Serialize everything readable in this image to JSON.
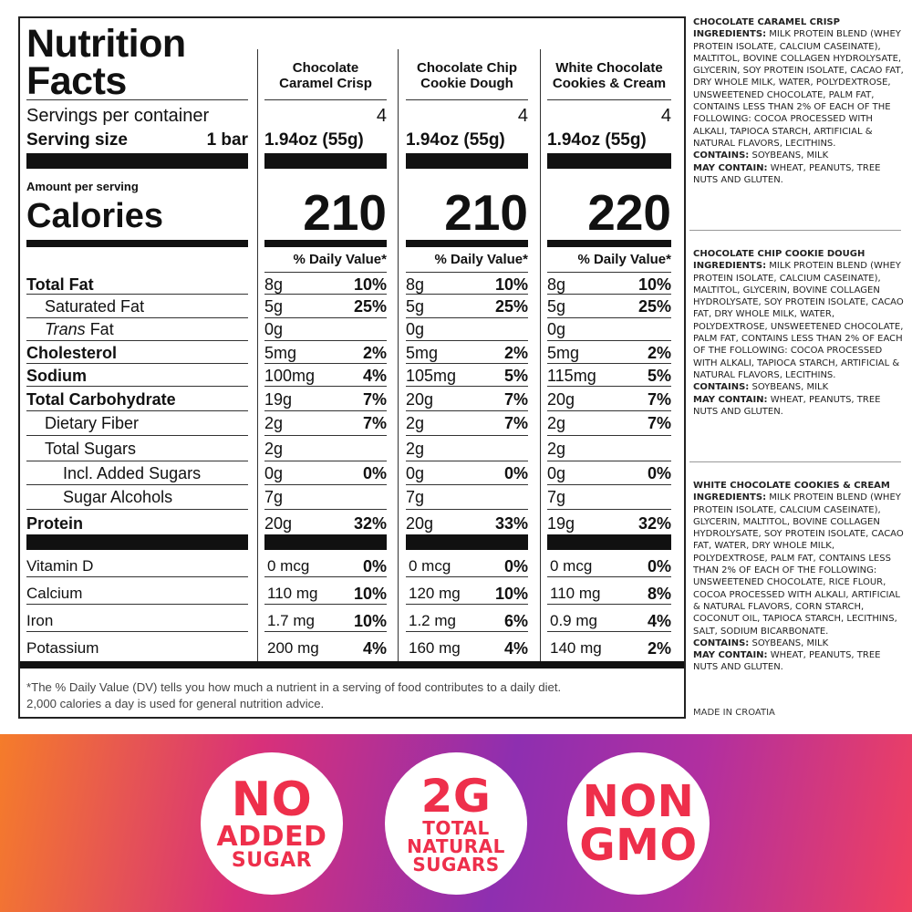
{
  "panel": {
    "title_line1": "Nutrition",
    "title_line2": "Facts",
    "servings_label": "Servings per container",
    "serving_size_label": "Serving size",
    "serving_size_unit": "1 bar",
    "amount_per_serving": "Amount per serving",
    "calories_label": "Calories",
    "dv_header": "% Daily Value*",
    "footnote_line1": "*The % Daily Value (DV) tells you how much a nutrient in a serving of food contributes to a daily diet.",
    "footnote_line2": "2,000 calories a day is used for general nutrition advice."
  },
  "products": [
    {
      "name_line1": "Chocolate",
      "name_line2": "Caramel Crisp",
      "servings": "4",
      "serving_size": "1.94oz (55g)",
      "calories": "210",
      "rows": [
        {
          "amt": "8g",
          "dv": "10%"
        },
        {
          "amt": "5g",
          "dv": "25%"
        },
        {
          "amt": "0g",
          "dv": ""
        },
        {
          "amt": "5mg",
          "dv": "2%"
        },
        {
          "amt": "100mg",
          "dv": "4%"
        },
        {
          "amt": "19g",
          "dv": "7%"
        },
        {
          "amt": "2g",
          "dv": "7%"
        },
        {
          "amt": "2g",
          "dv": ""
        },
        {
          "amt": "0g",
          "dv": "0%"
        },
        {
          "amt": "7g",
          "dv": ""
        },
        {
          "amt": "20g",
          "dv": "32%"
        }
      ],
      "vitamins": [
        {
          "amt": "0 mcg",
          "dv": "0%"
        },
        {
          "amt": "110 mg",
          "dv": "10%"
        },
        {
          "amt": "1.7 mg",
          "dv": "10%"
        },
        {
          "amt": "200 mg",
          "dv": "4%"
        }
      ]
    },
    {
      "name_line1": "Chocolate Chip",
      "name_line2": "Cookie Dough",
      "servings": "4",
      "serving_size": "1.94oz (55g)",
      "calories": "210",
      "rows": [
        {
          "amt": "8g",
          "dv": "10%"
        },
        {
          "amt": "5g",
          "dv": "25%"
        },
        {
          "amt": "0g",
          "dv": ""
        },
        {
          "amt": "5mg",
          "dv": "2%"
        },
        {
          "amt": "105mg",
          "dv": "5%"
        },
        {
          "amt": "20g",
          "dv": "7%"
        },
        {
          "amt": "2g",
          "dv": "7%"
        },
        {
          "amt": "2g",
          "dv": ""
        },
        {
          "amt": "0g",
          "dv": "0%"
        },
        {
          "amt": "7g",
          "dv": ""
        },
        {
          "amt": "20g",
          "dv": "33%"
        }
      ],
      "vitamins": [
        {
          "amt": "0 mcg",
          "dv": "0%"
        },
        {
          "amt": "120 mg",
          "dv": "10%"
        },
        {
          "amt": "1.2 mg",
          "dv": "6%"
        },
        {
          "amt": "160 mg",
          "dv": "4%"
        }
      ]
    },
    {
      "name_line1": "White Chocolate",
      "name_line2": "Cookies & Cream",
      "servings": "4",
      "serving_size": "1.94oz (55g)",
      "calories": "220",
      "rows": [
        {
          "amt": "8g",
          "dv": "10%"
        },
        {
          "amt": "5g",
          "dv": "25%"
        },
        {
          "amt": "0g",
          "dv": ""
        },
        {
          "amt": "5mg",
          "dv": "2%"
        },
        {
          "amt": "115mg",
          "dv": "5%"
        },
        {
          "amt": "20g",
          "dv": "7%"
        },
        {
          "amt": "2g",
          "dv": "7%"
        },
        {
          "amt": "2g",
          "dv": ""
        },
        {
          "amt": "0g",
          "dv": "0%"
        },
        {
          "amt": "7g",
          "dv": ""
        },
        {
          "amt": "19g",
          "dv": "32%"
        }
      ],
      "vitamins": [
        {
          "amt": "0 mcg",
          "dv": "0%"
        },
        {
          "amt": "110 mg",
          "dv": "8%"
        },
        {
          "amt": "0.9 mg",
          "dv": "4%"
        },
        {
          "amt": "140 mg",
          "dv": "2%"
        }
      ]
    }
  ],
  "nutrients": [
    {
      "label": "Total Fat",
      "style": "bold"
    },
    {
      "label": "Saturated Fat",
      "style": "indent1"
    },
    {
      "label_prefix": "Trans",
      "label": " Fat",
      "style": "indent1"
    },
    {
      "label": "Cholesterol",
      "style": "bold"
    },
    {
      "label": "Sodium",
      "style": "bold"
    },
    {
      "label": "Total Carbohydrate",
      "style": "bold"
    },
    {
      "label": "Dietary Fiber",
      "style": "indent1"
    },
    {
      "label": "Total Sugars",
      "style": "indent1"
    },
    {
      "label": "Incl. Added Sugars",
      "style": "indent2"
    },
    {
      "label": "Sugar Alcohols",
      "style": "indent2"
    },
    {
      "label": "Protein",
      "style": "bold"
    }
  ],
  "vitamin_labels": [
    "Vitamin D",
    "Calcium",
    "Iron",
    "Potassium"
  ],
  "ingredients": [
    {
      "product": "CHOCOLATE CARAMEL CRISP",
      "ingredients_label": "INGREDIENTS:",
      "ingredients_text": "MILK PROTEIN BLEND (WHEY PROTEIN ISOLATE, CALCIUM CASEINATE), MALTITOL, BOVINE COLLAGEN HYDROLYSATE, GLYCERIN, SOY PROTEIN ISOLATE, CACAO FAT, DRY WHOLE MILK, WATER, POLYDEXTROSE, UNSWEETENED CHOCOLATE, PALM FAT, CONTAINS LESS THAN 2% OF EACH OF THE FOLLOWING: COCOA PROCESSED WITH ALKALI, TAPIOCA STARCH, ARTIFICIAL & NATURAL FLAVORS, LECITHINS.",
      "contains_label": "CONTAINS:",
      "contains_text": "SOYBEANS, MILK",
      "may_contain_label": "MAY CONTAIN:",
      "may_contain_text": "WHEAT, PEANUTS, TREE NUTS AND GLUTEN."
    },
    {
      "product": "CHOCOLATE CHIP COOKIE DOUGH",
      "ingredients_label": "INGREDIENTS:",
      "ingredients_text": "MILK PROTEIN BLEND (WHEY PROTEIN ISOLATE, CALCIUM CASEINATE), MALTITOL, GLYCERIN, BOVINE COLLAGEN HYDROLYSATE, SOY PROTEIN ISOLATE, CACAO FAT, DRY WHOLE MILK, WATER, POLYDEXTROSE, UNSWEETENED CHOCOLATE, PALM FAT, CONTAINS LESS THAN 2% OF EACH OF THE FOLLOWING: COCOA PROCESSED WITH ALKALI, TAPIOCA STARCH, ARTIFICIAL & NATURAL FLAVORS, LECITHINS.",
      "contains_label": "CONTAINS:",
      "contains_text": "SOYBEANS, MILK",
      "may_contain_label": "MAY CONTAIN:",
      "may_contain_text": "WHEAT, PEANUTS, TREE NUTS AND GLUTEN."
    },
    {
      "product": "WHITE CHOCOLATE COOKIES & CREAM",
      "ingredients_label": "INGREDIENTS:",
      "ingredients_text": "MILK PROTEIN BLEND (WHEY PROTEIN ISOLATE, CALCIUM CASEINATE), GLYCERIN, MALTITOL, BOVINE COLLAGEN HYDROLYSATE, SOY PROTEIN ISOLATE, CACAO FAT, WATER, DRY WHOLE MILK, POLYDEXTROSE, PALM FAT, CONTAINS LESS THAN 2% OF EACH OF THE FOLLOWING: UNSWEETENED CHOCOLATE, RICE FLOUR, COCOA PROCESSED WITH ALKALI, ARTIFICIAL & NATURAL FLAVORS, CORN STARCH, COCONUT OIL, TAPIOCA STARCH, LECITHINS, SALT, SODIUM BICARBONATE.",
      "contains_label": "CONTAINS:",
      "contains_text": "SOYBEANS, MILK",
      "may_contain_label": "MAY CONTAIN:",
      "may_contain_text": "WHEAT, PEANUTS, TREE NUTS AND GLUTEN."
    }
  ],
  "made_in": "MADE IN CROATIA",
  "badges": [
    {
      "name": "no-added-sugar-badge",
      "lines": [
        "NO",
        "ADDED",
        "SUGAR"
      ]
    },
    {
      "name": "total-natural-sugars-badge",
      "lines": [
        "2G",
        "TOTAL",
        "NATURAL",
        "SUGARS"
      ]
    },
    {
      "name": "non-gmo-badge",
      "lines": [
        "NON",
        "GMO"
      ]
    }
  ],
  "colors": {
    "badge_text": "#ee2f4b",
    "rule": "#111111"
  }
}
